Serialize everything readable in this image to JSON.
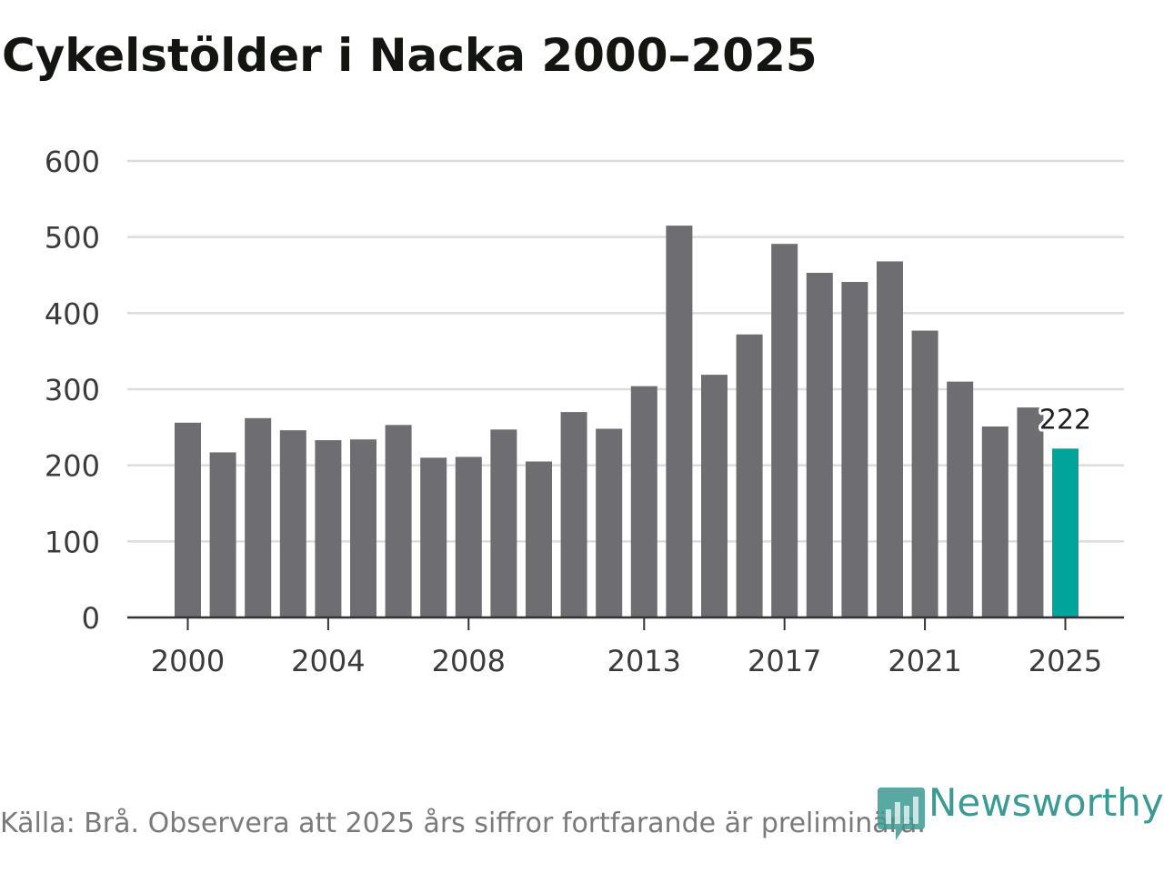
{
  "chart_data": {
    "type": "bar",
    "title": "Cykelstölder i Nacka 2000–2025",
    "xlabel": "",
    "ylabel": "",
    "ylim": [
      0,
      600
    ],
    "y_ticks": [
      0,
      100,
      200,
      300,
      400,
      500,
      600
    ],
    "grid": true,
    "categories": [
      2000,
      2001,
      2002,
      2003,
      2004,
      2005,
      2006,
      2007,
      2008,
      2009,
      2010,
      2011,
      2012,
      2013,
      2014,
      2015,
      2016,
      2017,
      2018,
      2019,
      2020,
      2021,
      2022,
      2023,
      2024,
      2025
    ],
    "x_tick_labels": [
      "2000",
      "2004",
      "2008",
      "2013",
      "2017",
      "2021",
      "2025"
    ],
    "values": [
      256,
      217,
      262,
      246,
      233,
      234,
      253,
      210,
      211,
      247,
      205,
      270,
      248,
      304,
      515,
      319,
      372,
      491,
      453,
      441,
      468,
      377,
      310,
      251,
      276,
      222
    ],
    "highlight": {
      "category": 2025,
      "label": "222"
    },
    "colors": {
      "bar": "#6d6d72",
      "highlight": "#00a49a",
      "grid": "#dcdcdc",
      "axis": "#333333"
    }
  },
  "footer": {
    "source": "Källa: Brå. Observera att 2025 års siffror fortfarande är preliminära.",
    "brand": "Newsworthy",
    "brand_icon": "bar-chart-icon",
    "brand_color": "#3c9a93"
  }
}
